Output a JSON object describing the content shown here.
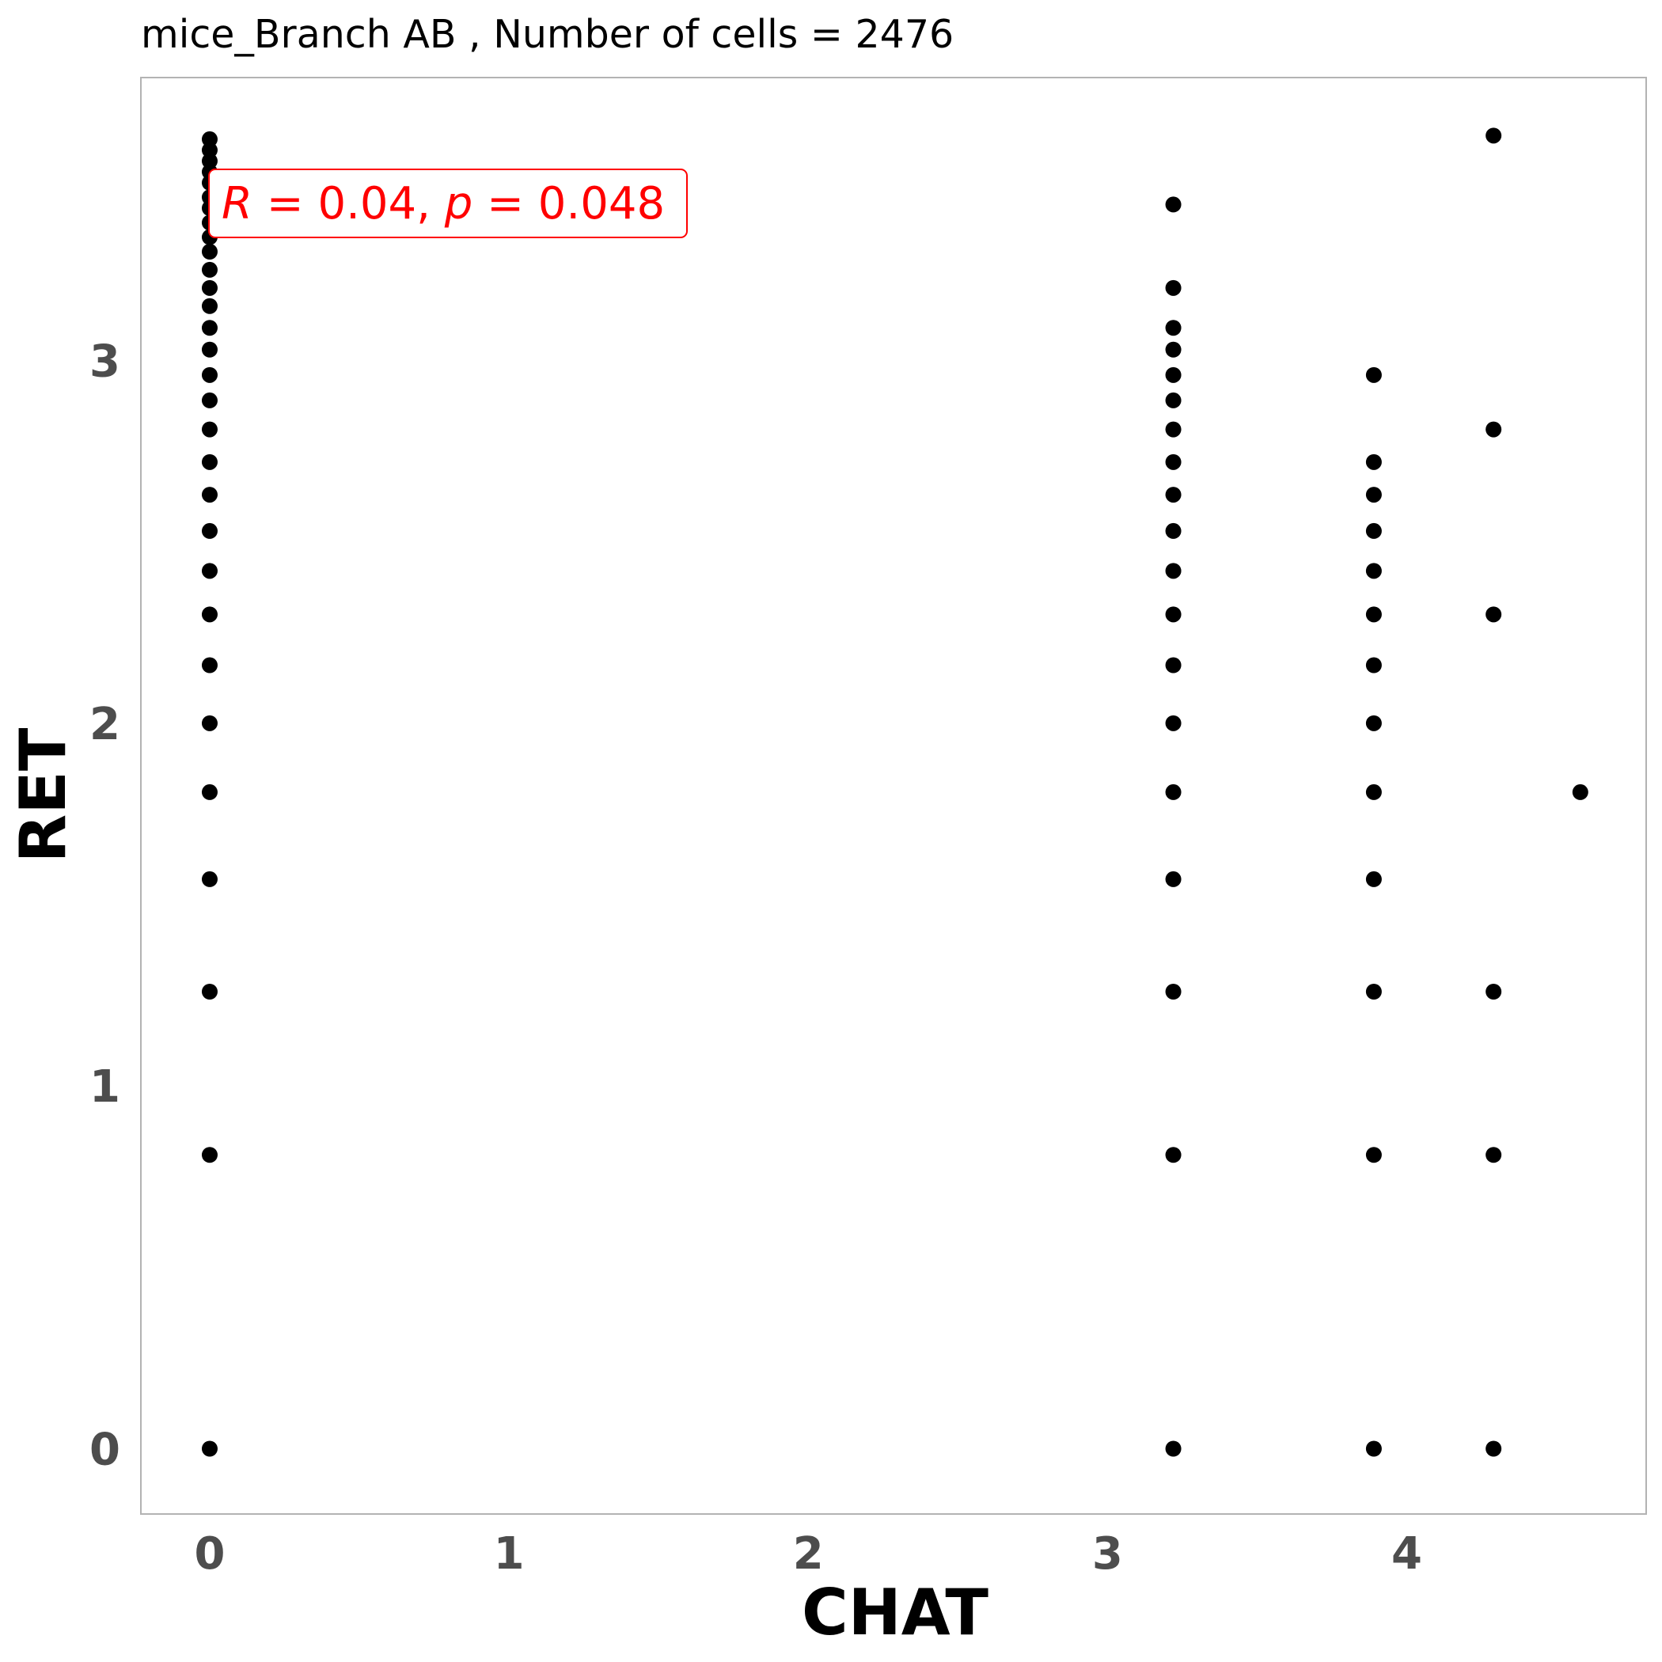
{
  "chart_data": {
    "type": "scatter",
    "title": "mice_Branch AB , Number of cells =  2476",
    "xlabel": "CHAT",
    "ylabel": "RET",
    "xlim": [
      -0.23,
      4.8
    ],
    "ylim": [
      -0.18,
      3.78
    ],
    "xticks": [
      0,
      1,
      2,
      3,
      4
    ],
    "yticks": [
      0,
      1,
      2,
      3
    ],
    "grid": false,
    "annotation": {
      "parts": [
        {
          "text": "R",
          "italic": true
        },
        {
          "text": " = 0.04, ",
          "italic": false
        },
        {
          "text": "p",
          "italic": true
        },
        {
          "text": " = 0.048",
          "italic": false
        }
      ],
      "color": "#ff0000"
    },
    "point_color": "#000000",
    "series": [
      {
        "x": [
          0,
          0,
          0,
          0,
          0,
          0,
          0,
          0,
          0,
          0,
          0,
          0,
          0,
          0,
          0,
          0,
          0,
          0,
          0,
          0,
          0,
          0,
          0,
          0,
          0,
          0,
          0,
          0,
          0,
          0
        ],
        "y": [
          0,
          0.81,
          1.26,
          1.57,
          1.81,
          2.0,
          2.16,
          2.3,
          2.42,
          2.53,
          2.63,
          2.72,
          2.81,
          2.89,
          2.96,
          3.03,
          3.09,
          3.15,
          3.2,
          3.25,
          3.3,
          3.34,
          3.38,
          3.42,
          3.45,
          3.49,
          3.52,
          3.55,
          3.58,
          3.61
        ]
      },
      {
        "x": [
          3.22,
          3.22,
          3.22,
          3.22,
          3.22,
          3.22,
          3.22,
          3.22,
          3.22,
          3.22,
          3.22,
          3.22,
          3.22,
          3.22,
          3.22,
          3.22,
          3.22,
          3.22,
          3.22
        ],
        "y": [
          0,
          0.81,
          1.26,
          1.57,
          1.81,
          2.0,
          2.16,
          2.3,
          2.42,
          2.53,
          2.63,
          2.72,
          2.81,
          2.89,
          2.96,
          3.03,
          3.09,
          3.2,
          3.43
        ]
      },
      {
        "x": [
          3.89,
          3.89,
          3.89,
          3.89,
          3.89,
          3.89,
          3.89,
          3.89,
          3.89,
          3.89,
          3.89,
          3.89,
          3.89
        ],
        "y": [
          0,
          0.81,
          1.26,
          1.57,
          1.81,
          2.0,
          2.16,
          2.3,
          2.42,
          2.53,
          2.63,
          2.72,
          2.96
        ]
      },
      {
        "x": [
          4.29,
          4.29,
          4.29,
          4.29,
          4.29,
          4.29
        ],
        "y": [
          0,
          0.81,
          1.26,
          2.3,
          2.81,
          3.62
        ]
      },
      {
        "x": [
          4.58
        ],
        "y": [
          1.81
        ]
      }
    ]
  }
}
